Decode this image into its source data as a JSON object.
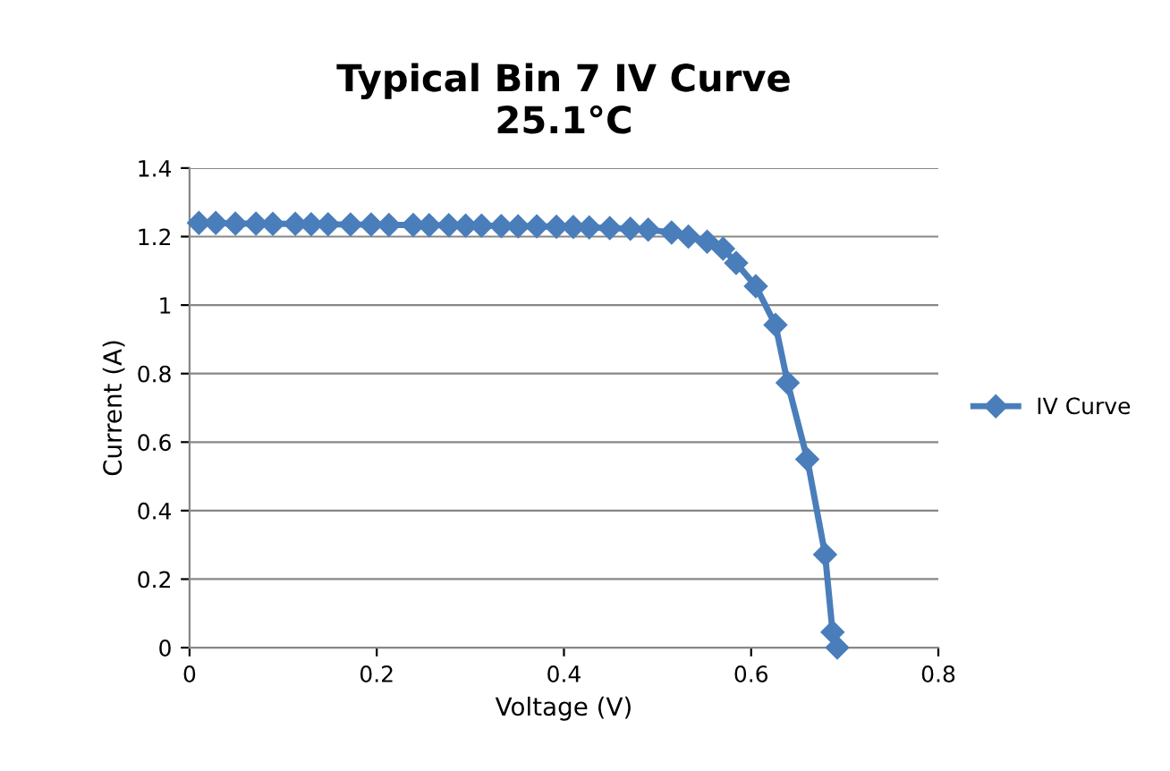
{
  "chart_data": {
    "type": "line",
    "title": "Typical Bin 7 IV Curve\n25.1°C",
    "xlabel": "Voltage (V)",
    "ylabel": "Current (A)",
    "xlim": [
      0,
      0.8
    ],
    "xticks": [
      0,
      0.2,
      0.4,
      0.6,
      0.8
    ],
    "ylim": [
      0,
      1.4
    ],
    "yticks": [
      0,
      0.2,
      0.4,
      0.6,
      0.8,
      1,
      1.2,
      1.4
    ],
    "grid": "y",
    "legend": "right",
    "marker": "diamond",
    "line_style": "solid",
    "series": [
      {
        "name": "IV Curve",
        "color": "#4a7ebb",
        "x": [
          0.01,
          0.028,
          0.049,
          0.071,
          0.089,
          0.113,
          0.13,
          0.148,
          0.172,
          0.194,
          0.213,
          0.239,
          0.256,
          0.277,
          0.295,
          0.312,
          0.333,
          0.351,
          0.371,
          0.392,
          0.41,
          0.427,
          0.449,
          0.471,
          0.49,
          0.515,
          0.533,
          0.553,
          0.57,
          0.584,
          0.605,
          0.626,
          0.639,
          0.66,
          0.679,
          0.687,
          0.692
        ],
        "values": [
          1.24,
          1.24,
          1.238,
          1.238,
          1.237,
          1.237,
          1.236,
          1.236,
          1.235,
          1.235,
          1.234,
          1.234,
          1.233,
          1.233,
          1.232,
          1.232,
          1.231,
          1.23,
          1.23,
          1.229,
          1.228,
          1.227,
          1.225,
          1.223,
          1.22,
          1.212,
          1.2,
          1.185,
          1.165,
          1.123,
          1.055,
          0.942,
          0.773,
          0.55,
          0.272,
          0.045,
          0.0
        ]
      }
    ]
  }
}
